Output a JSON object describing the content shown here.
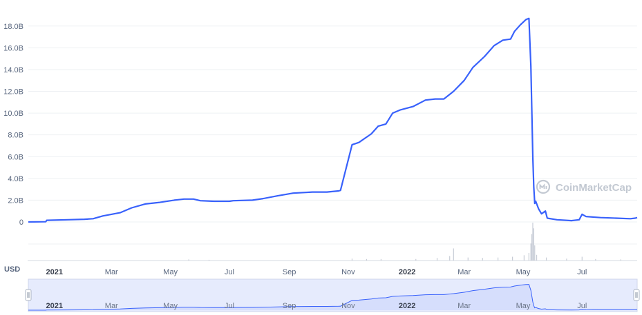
{
  "watermark": "CoinMarketCap",
  "unit_label": "USD",
  "colors": {
    "line": "#3861fb",
    "grid": "#eef0f3",
    "volume": "#c7ccd6",
    "navigator_fill": "#e6ebfd",
    "navigator_line": "#3861fb",
    "axis_text": "#58667e"
  },
  "chart_data": {
    "type": "line",
    "title": "",
    "xlabel": "",
    "ylabel": "",
    "ylim": [
      0,
      19
    ],
    "y_ticks": [
      {
        "value": 0,
        "label": "0"
      },
      {
        "value": 2,
        "label": "2.0B"
      },
      {
        "value": 4,
        "label": "4.0B"
      },
      {
        "value": 6,
        "label": "6.0B"
      },
      {
        "value": 8,
        "label": "8.0B"
      },
      {
        "value": 10,
        "label": "10.0B"
      },
      {
        "value": 12,
        "label": "12.0B"
      },
      {
        "value": 14,
        "label": "14.0B"
      },
      {
        "value": 16,
        "label": "16.0B"
      },
      {
        "value": 18,
        "label": "18.0B"
      }
    ],
    "xlim": [
      "2020-12-05",
      "2022-08-27"
    ],
    "x_ticks": [
      {
        "date": "2021-01-01",
        "label": "2021",
        "year": true
      },
      {
        "date": "2021-03-01",
        "label": "Mar",
        "year": false
      },
      {
        "date": "2021-05-01",
        "label": "May",
        "year": false
      },
      {
        "date": "2021-07-01",
        "label": "Jul",
        "year": false
      },
      {
        "date": "2021-09-01",
        "label": "Sep",
        "year": false
      },
      {
        "date": "2021-11-01",
        "label": "Nov",
        "year": false
      },
      {
        "date": "2022-01-01",
        "label": "2022",
        "year": true
      },
      {
        "date": "2022-03-01",
        "label": "Mar",
        "year": false
      },
      {
        "date": "2022-05-01",
        "label": "May",
        "year": false
      },
      {
        "date": "2022-07-01",
        "label": "Jul",
        "year": false
      }
    ],
    "series": [
      {
        "points": [
          [
            "2020-12-05",
            0.0
          ],
          [
            "2020-12-23",
            0.02
          ],
          [
            "2020-12-24",
            0.15
          ],
          [
            "2021-01-15",
            0.2
          ],
          [
            "2021-02-01",
            0.25
          ],
          [
            "2021-02-10",
            0.3
          ],
          [
            "2021-02-20",
            0.55
          ],
          [
            "2021-03-01",
            0.7
          ],
          [
            "2021-03-10",
            0.85
          ],
          [
            "2021-03-22",
            1.3
          ],
          [
            "2021-04-05",
            1.65
          ],
          [
            "2021-04-20",
            1.8
          ],
          [
            "2021-05-05",
            2.0
          ],
          [
            "2021-05-15",
            2.1
          ],
          [
            "2021-05-25",
            2.1
          ],
          [
            "2021-06-01",
            1.95
          ],
          [
            "2021-06-15",
            1.9
          ],
          [
            "2021-07-01",
            1.9
          ],
          [
            "2021-07-05",
            1.95
          ],
          [
            "2021-07-25",
            2.0
          ],
          [
            "2021-08-05",
            2.15
          ],
          [
            "2021-08-20",
            2.4
          ],
          [
            "2021-09-05",
            2.65
          ],
          [
            "2021-09-25",
            2.75
          ],
          [
            "2021-10-10",
            2.75
          ],
          [
            "2021-10-22",
            2.85
          ],
          [
            "2021-10-24",
            2.9
          ],
          [
            "2021-11-05",
            7.1
          ],
          [
            "2021-11-12",
            7.3
          ],
          [
            "2021-11-25",
            8.1
          ],
          [
            "2021-12-02",
            8.8
          ],
          [
            "2021-12-10",
            9.0
          ],
          [
            "2021-12-17",
            10.0
          ],
          [
            "2021-12-25",
            10.3
          ],
          [
            "2022-01-07",
            10.6
          ],
          [
            "2022-01-20",
            11.2
          ],
          [
            "2022-01-30",
            11.3
          ],
          [
            "2022-02-08",
            11.3
          ],
          [
            "2022-02-18",
            12.0
          ],
          [
            "2022-03-01",
            13.0
          ],
          [
            "2022-03-10",
            14.2
          ],
          [
            "2022-03-22",
            15.2
          ],
          [
            "2022-04-01",
            16.2
          ],
          [
            "2022-04-10",
            16.7
          ],
          [
            "2022-04-18",
            16.8
          ],
          [
            "2022-04-22",
            17.5
          ],
          [
            "2022-04-28",
            18.1
          ],
          [
            "2022-05-04",
            18.6
          ],
          [
            "2022-05-07",
            18.7
          ],
          [
            "2022-05-09",
            14.3
          ],
          [
            "2022-05-11",
            6.0
          ],
          [
            "2022-05-12",
            3.2
          ],
          [
            "2022-05-13",
            1.7
          ],
          [
            "2022-05-14",
            1.9
          ],
          [
            "2022-05-17",
            1.2
          ],
          [
            "2022-05-20",
            0.75
          ],
          [
            "2022-05-24",
            1.0
          ],
          [
            "2022-05-26",
            0.35
          ],
          [
            "2022-06-05",
            0.2
          ],
          [
            "2022-06-20",
            0.12
          ],
          [
            "2022-06-28",
            0.2
          ],
          [
            "2022-07-01",
            0.7
          ],
          [
            "2022-07-05",
            0.5
          ],
          [
            "2022-07-20",
            0.4
          ],
          [
            "2022-08-05",
            0.35
          ],
          [
            "2022-08-20",
            0.3
          ],
          [
            "2022-08-25",
            0.35
          ],
          [
            "2022-08-27",
            0.4
          ]
        ]
      }
    ],
    "volume_ylim": [
      0,
      1
    ],
    "volume": [
      [
        "2021-05-20",
        0.03
      ],
      [
        "2021-06-10",
        0.02
      ],
      [
        "2021-11-05",
        0.05
      ],
      [
        "2021-11-20",
        0.04
      ],
      [
        "2021-12-05",
        0.04
      ],
      [
        "2022-01-10",
        0.04
      ],
      [
        "2022-02-01",
        0.07
      ],
      [
        "2022-02-14",
        0.12
      ],
      [
        "2022-02-18",
        0.32
      ],
      [
        "2022-03-05",
        0.08
      ],
      [
        "2022-03-20",
        0.07
      ],
      [
        "2022-04-05",
        0.08
      ],
      [
        "2022-04-20",
        0.1
      ],
      [
        "2022-05-02",
        0.14
      ],
      [
        "2022-05-07",
        0.2
      ],
      [
        "2022-05-09",
        0.45
      ],
      [
        "2022-05-10",
        0.7
      ],
      [
        "2022-05-11",
        1.0
      ],
      [
        "2022-05-12",
        0.85
      ],
      [
        "2022-05-13",
        0.4
      ],
      [
        "2022-05-15",
        0.15
      ],
      [
        "2022-05-25",
        0.08
      ],
      [
        "2022-06-15",
        0.05
      ],
      [
        "2022-07-01",
        0.1
      ],
      [
        "2022-07-15",
        0.04
      ],
      [
        "2022-08-10",
        0.03
      ]
    ],
    "grid": true,
    "legend": "none"
  }
}
